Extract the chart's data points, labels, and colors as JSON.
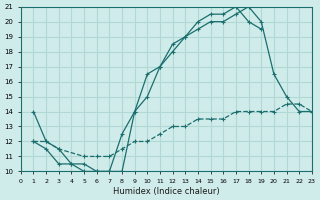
{
  "xlabel": "Humidex (Indice chaleur)",
  "ylabel": "",
  "bg_color": "#d0ecea",
  "grid_color": "#b0d8d4",
  "line_color": "#1a6e6e",
  "xlim": [
    0,
    23
  ],
  "ylim": [
    10,
    21
  ],
  "yticks": [
    10,
    11,
    12,
    13,
    14,
    15,
    16,
    17,
    18,
    19,
    20,
    21
  ],
  "xticks": [
    0,
    1,
    2,
    3,
    4,
    5,
    6,
    7,
    8,
    9,
    10,
    11,
    12,
    13,
    14,
    15,
    16,
    17,
    18,
    19,
    20,
    21,
    22,
    23
  ],
  "line1_x": [
    1,
    2,
    3,
    4,
    5,
    6,
    7,
    8,
    9,
    10,
    11,
    12,
    13,
    14,
    15,
    16,
    17,
    18,
    19,
    20,
    21,
    22,
    23
  ],
  "line1_y": [
    12,
    11.5,
    10.5,
    10.5,
    10,
    10,
    10,
    12.5,
    14,
    16.5,
    17,
    18.5,
    19,
    19.5,
    20,
    20,
    20.5,
    21,
    20,
    16.5,
    15,
    14,
    14
  ],
  "line2_x": [
    1,
    2,
    3,
    4,
    5,
    6,
    7,
    8,
    9,
    10,
    11,
    12,
    13,
    14,
    15,
    16,
    17,
    18,
    19,
    20,
    21,
    22,
    23
  ],
  "line2_y": [
    14,
    12,
    11.5,
    10.5,
    10.5,
    10,
    10,
    10,
    14,
    15,
    17,
    18,
    19,
    20,
    20.5,
    20.5,
    21,
    20,
    19.5,
    null,
    null,
    null,
    null
  ],
  "line3_x": [
    1,
    2,
    3,
    5,
    6,
    7,
    8,
    9,
    10,
    11,
    12,
    13,
    14,
    15,
    16,
    17,
    18,
    19,
    20,
    21,
    22,
    23
  ],
  "line3_y": [
    12,
    12,
    11.5,
    11,
    11,
    11,
    11.5,
    12,
    12,
    12.5,
    13,
    13,
    13.5,
    13.5,
    13.5,
    14,
    14,
    14,
    14,
    14.5,
    14.5,
    14
  ]
}
